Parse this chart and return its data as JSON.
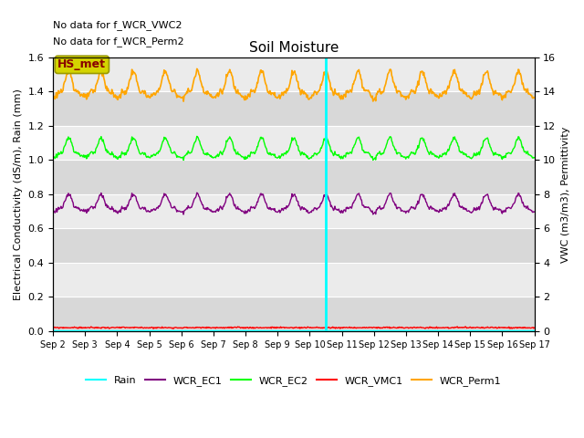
{
  "title": "Soil Moisture",
  "ylabel_left": "Electrical Conductivity (dS/m), Rain (mm)",
  "ylabel_right": "VWC (m3/m3), Permittivity",
  "ylim_left": [
    0,
    1.6
  ],
  "ylim_right": [
    0,
    16
  ],
  "x_tick_labels": [
    "Sep 2",
    "Sep 3",
    "Sep 4",
    "Sep 5",
    "Sep 6",
    "Sep 7",
    "Sep 8",
    "Sep 9",
    "Sep 10",
    "Sep 11",
    "Sep 12",
    "Sep 13",
    "Sep 14",
    "Sep 15",
    "Sep 16",
    "Sep 17"
  ],
  "vline_day": 8.5,
  "vline_color": "cyan",
  "no_data_text": [
    "No data for f_WCR_VWC2",
    "No data for f_WCR_Perm2"
  ],
  "hs_met_label": "HS_met",
  "hs_met_bg": "#d4d400",
  "hs_met_fg": "#880000",
  "background_dark": "#d8d8d8",
  "background_light": "#ebebeb",
  "legend_entries": [
    {
      "label": "Rain",
      "color": "cyan",
      "linestyle": "-"
    },
    {
      "label": "WCR_EC1",
      "color": "purple",
      "linestyle": "-"
    },
    {
      "label": "WCR_EC2",
      "color": "lime",
      "linestyle": "-"
    },
    {
      "label": "WCR_VMC1",
      "color": "red",
      "linestyle": "-"
    },
    {
      "label": "WCR_Perm1",
      "color": "orange",
      "linestyle": "-"
    }
  ]
}
